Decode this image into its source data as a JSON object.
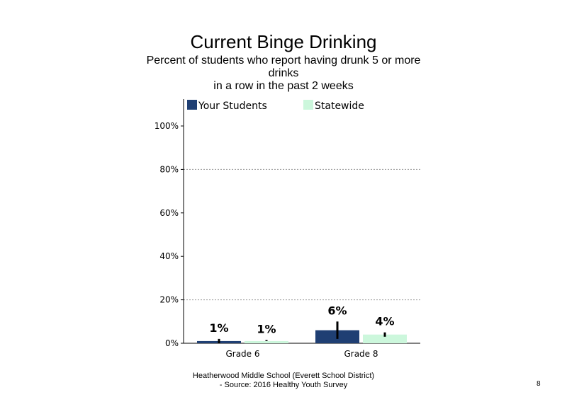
{
  "chart_data": {
    "type": "bar",
    "title": "Current Binge Drinking",
    "subtitle_lines": [
      "Percent of students  who report having drunk 5 or more",
      "drinks",
      "in a row in the past 2 weeks"
    ],
    "categories": [
      "Grade 6",
      "Grade 8"
    ],
    "series": [
      {
        "name": "Your Students",
        "color": "#1f3f73",
        "values": [
          1,
          6
        ],
        "labels": [
          "1%",
          "6%"
        ],
        "error_low": [
          0,
          2
        ],
        "error_high": [
          2,
          10
        ]
      },
      {
        "name": "Statewide",
        "color": "#ccf7dc",
        "values": [
          1,
          4
        ],
        "labels": [
          "1%",
          "4%"
        ],
        "error_low": [
          1,
          3
        ],
        "error_high": [
          1.5,
          5
        ]
      }
    ],
    "yticks": [
      0,
      20,
      40,
      60,
      80,
      100
    ],
    "ytick_labels": [
      "0%",
      "20%",
      "40%",
      "60%",
      "80%",
      "100%"
    ],
    "ylim": [
      0,
      100
    ],
    "grid": "dotted at 20% and 80%",
    "legend_position": "top"
  },
  "footer": {
    "line1": "Heatherwood Middle School (Everett School District)",
    "line2": "- Source: 2016 Healthy  Youth Survey"
  },
  "page_number": "8"
}
